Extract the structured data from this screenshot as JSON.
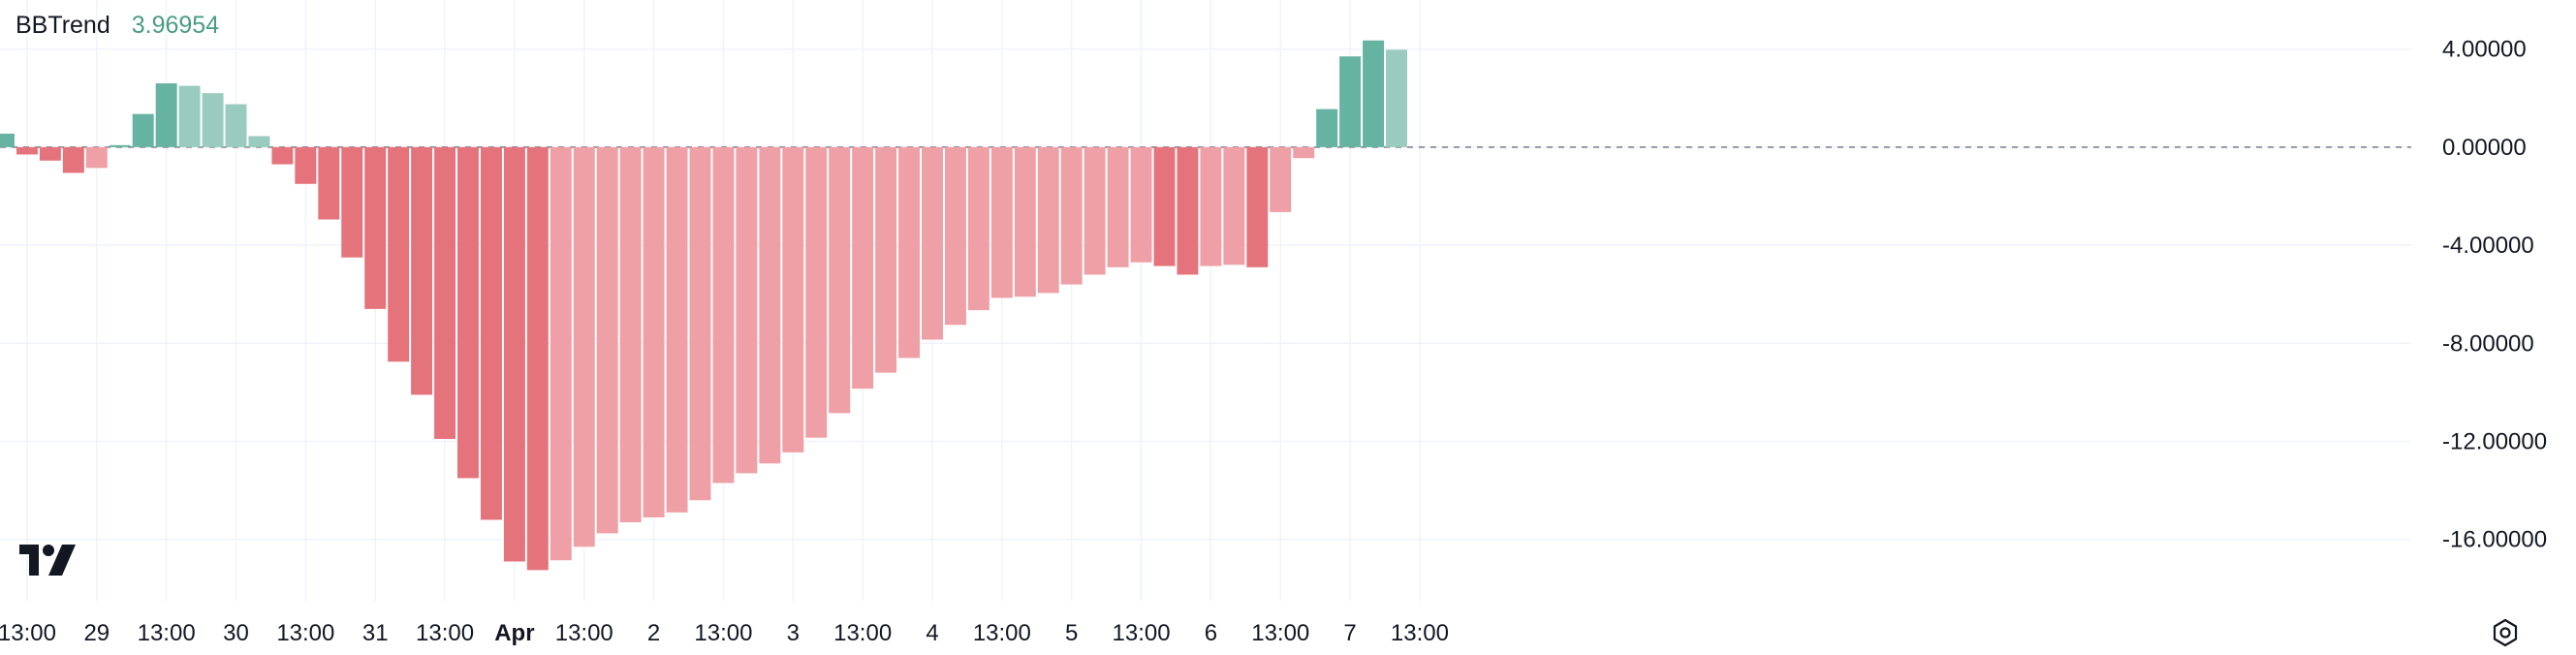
{
  "legend": {
    "name": "BBTrend",
    "value": "3.96954"
  },
  "colors": {
    "pos_strong": "#66b3a1",
    "pos_weak": "#99ccbe",
    "neg_strong": "#e5737c",
    "neg_weak": "#eea0a6",
    "grid": "#f0f3fa",
    "zero_line": "#787b86",
    "legend_value": "#4a9c84"
  },
  "icons": {
    "logo": "tradingview-logo-icon",
    "settings": "gear-icon"
  },
  "chart_data": {
    "type": "bar",
    "ylim": [
      -18.5,
      6.0
    ],
    "y_ticks": [
      "4.00000",
      "0.00000",
      "-4.00000",
      "-8.00000",
      "-12.00000",
      "-16.00000"
    ],
    "y_tick_values": [
      4,
      0,
      -4,
      -8,
      -12,
      -16
    ],
    "x_ticks": [
      {
        "label": "13:00",
        "index": 1,
        "bold": false
      },
      {
        "label": "29",
        "index": 4,
        "bold": false
      },
      {
        "label": "13:00",
        "index": 7,
        "bold": false
      },
      {
        "label": "30",
        "index": 10,
        "bold": false
      },
      {
        "label": "13:00",
        "index": 13,
        "bold": false
      },
      {
        "label": "31",
        "index": 16,
        "bold": false
      },
      {
        "label": "13:00",
        "index": 19,
        "bold": false
      },
      {
        "label": "Apr",
        "index": 22,
        "bold": true
      },
      {
        "label": "13:00",
        "index": 25,
        "bold": false
      },
      {
        "label": "2",
        "index": 28,
        "bold": false
      },
      {
        "label": "13:00",
        "index": 31,
        "bold": false
      },
      {
        "label": "3",
        "index": 34,
        "bold": false
      },
      {
        "label": "13:00",
        "index": 37,
        "bold": false
      },
      {
        "label": "4",
        "index": 40,
        "bold": false
      },
      {
        "label": "13:00",
        "index": 43,
        "bold": false
      },
      {
        "label": "5",
        "index": 46,
        "bold": false
      },
      {
        "label": "13:00",
        "index": 49,
        "bold": false
      },
      {
        "label": "6",
        "index": 52,
        "bold": false
      },
      {
        "label": "13:00",
        "index": 55,
        "bold": false
      },
      {
        "label": "7",
        "index": 58,
        "bold": false
      },
      {
        "label": "13:00",
        "index": 61,
        "bold": false
      }
    ],
    "values": [
      0.55,
      -0.3,
      -0.55,
      -1.05,
      -0.85,
      0.08,
      1.35,
      2.6,
      2.5,
      2.2,
      1.75,
      0.45,
      -0.7,
      -1.5,
      -2.95,
      -4.5,
      -6.6,
      -8.75,
      -10.1,
      -11.9,
      -13.5,
      -15.2,
      -16.9,
      -17.25,
      -16.85,
      -16.3,
      -15.75,
      -15.3,
      -15.1,
      -14.9,
      -14.4,
      -13.7,
      -13.3,
      -12.9,
      -12.45,
      -11.85,
      -10.85,
      -9.85,
      -9.2,
      -8.6,
      -7.85,
      -7.25,
      -6.65,
      -6.15,
      -6.1,
      -5.95,
      -5.6,
      -5.2,
      -4.9,
      -4.7,
      -4.85,
      -5.2,
      -4.85,
      -4.8,
      -4.9,
      -2.65,
      -0.45,
      1.55,
      3.7,
      4.35,
      3.97
    ],
    "strength": [
      "s",
      "s",
      "s",
      "s",
      "w",
      "s",
      "s",
      "s",
      "w",
      "w",
      "w",
      "w",
      "s",
      "s",
      "s",
      "s",
      "s",
      "s",
      "s",
      "s",
      "s",
      "s",
      "s",
      "s",
      "w",
      "w",
      "w",
      "w",
      "w",
      "w",
      "w",
      "w",
      "w",
      "w",
      "w",
      "w",
      "w",
      "w",
      "w",
      "w",
      "w",
      "w",
      "w",
      "w",
      "w",
      "w",
      "w",
      "w",
      "w",
      "w",
      "s",
      "s",
      "w",
      "w",
      "s",
      "w",
      "w",
      "s",
      "s",
      "s",
      "w"
    ],
    "first_bar_center_x": 4,
    "bar_step": 23.95
  }
}
